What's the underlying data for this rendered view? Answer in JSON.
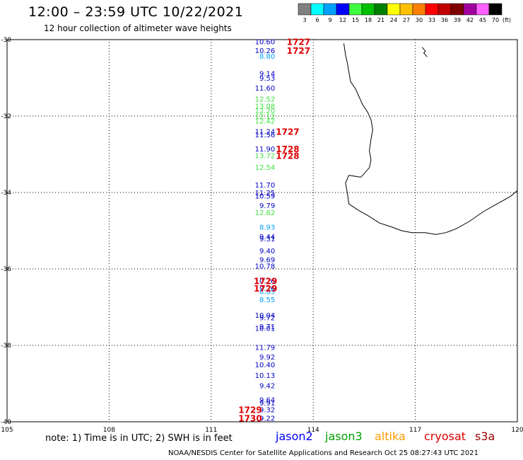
{
  "header": {
    "title": "12:00 – 23:59 UTC 10/22/2021",
    "subtitle": "12 hour collection of altimeter wave heights"
  },
  "legend": {
    "unit": "(ft)",
    "bins": [
      {
        "label": "3",
        "color": "#808080"
      },
      {
        "label": "6",
        "color": "#00ffff"
      },
      {
        "label": "9",
        "color": "#00a0ff"
      },
      {
        "label": "12",
        "color": "#0000ff"
      },
      {
        "label": "15",
        "color": "#40ff40"
      },
      {
        "label": "18",
        "color": "#00c000"
      },
      {
        "label": "21",
        "color": "#008000"
      },
      {
        "label": "24",
        "color": "#ffff00"
      },
      {
        "label": "27",
        "color": "#ffc000"
      },
      {
        "label": "30",
        "color": "#ff8000"
      },
      {
        "label": "33",
        "color": "#ff0000"
      },
      {
        "label": "36",
        "color": "#c00000"
      },
      {
        "label": "39",
        "color": "#800000"
      },
      {
        "label": "42",
        "color": "#a000a0"
      },
      {
        "label": "45",
        "color": "#ff60ff"
      },
      {
        "label": "70",
        "color": "#000000"
      }
    ]
  },
  "map": {
    "lon_range": [
      105,
      120
    ],
    "lat_range": [
      -40,
      -30
    ],
    "x_ticks": [
      {
        "value": 105,
        "label": "105"
      },
      {
        "value": 108,
        "label": "108"
      },
      {
        "value": 111,
        "label": "111"
      },
      {
        "value": 114,
        "label": "114"
      },
      {
        "value": 117,
        "label": "117"
      },
      {
        "value": 120,
        "label": "120"
      }
    ],
    "y_ticks": [
      {
        "value": -30,
        "label": "-30"
      },
      {
        "value": -32,
        "label": "-32"
      },
      {
        "value": -34,
        "label": "-34"
      },
      {
        "value": -36,
        "label": "-36"
      },
      {
        "value": -38,
        "label": "-38"
      },
      {
        "value": -40,
        "label": "-40"
      }
    ],
    "grid": true,
    "observations": [
      {
        "lon": 112.88,
        "lat": -30.05,
        "label": "10.60",
        "color": "#0000c8"
      },
      {
        "lon": 112.88,
        "lat": -30.28,
        "label": "10.26",
        "color": "#0000c8"
      },
      {
        "lon": 112.88,
        "lat": -30.43,
        "label": "8.80",
        "color": "#00a0ff"
      },
      {
        "lon": 112.88,
        "lat": -30.88,
        "label": "9.14",
        "color": "#0000c8"
      },
      {
        "lon": 112.88,
        "lat": -31.0,
        "label": "9.53",
        "color": "#0000c8"
      },
      {
        "lon": 112.88,
        "lat": -31.26,
        "label": "11.60",
        "color": "#0000c8"
      },
      {
        "lon": 112.88,
        "lat": -31.55,
        "label": "12.52",
        "color": "#40e040"
      },
      {
        "lon": 112.88,
        "lat": -31.73,
        "label": "13.08",
        "color": "#40e040"
      },
      {
        "lon": 112.88,
        "lat": -31.85,
        "label": "12.20",
        "color": "#40e040"
      },
      {
        "lon": 112.88,
        "lat": -32.0,
        "label": "12.12",
        "color": "#40e040"
      },
      {
        "lon": 112.88,
        "lat": -32.12,
        "label": "12.42",
        "color": "#40e040"
      },
      {
        "lon": 112.88,
        "lat": -32.4,
        "label": "11.24",
        "color": "#0000c8"
      },
      {
        "lon": 112.88,
        "lat": -32.48,
        "label": "11.56",
        "color": "#0000c8"
      },
      {
        "lon": 112.88,
        "lat": -32.85,
        "label": "11.90",
        "color": "#0000c8"
      },
      {
        "lon": 112.88,
        "lat": -33.03,
        "label": "13.72",
        "color": "#40e040"
      },
      {
        "lon": 112.88,
        "lat": -33.33,
        "label": "12.54",
        "color": "#40e040"
      },
      {
        "lon": 112.88,
        "lat": -33.8,
        "label": "11.70",
        "color": "#0000c8"
      },
      {
        "lon": 112.88,
        "lat": -34.0,
        "label": "11.25",
        "color": "#0000c8"
      },
      {
        "lon": 112.88,
        "lat": -34.08,
        "label": "10.59",
        "color": "#0000c8"
      },
      {
        "lon": 112.88,
        "lat": -34.33,
        "label": "9.79",
        "color": "#0000c8"
      },
      {
        "lon": 112.88,
        "lat": -34.52,
        "label": "12.62",
        "color": "#40e040"
      },
      {
        "lon": 112.88,
        "lat": -34.9,
        "label": "8.93",
        "color": "#00a0ff"
      },
      {
        "lon": 112.88,
        "lat": -35.15,
        "label": "9.44",
        "color": "#0000c8"
      },
      {
        "lon": 112.88,
        "lat": -35.2,
        "label": "9.31",
        "color": "#0000c8"
      },
      {
        "lon": 112.88,
        "lat": -35.52,
        "label": "9.40",
        "color": "#0000c8"
      },
      {
        "lon": 112.88,
        "lat": -35.75,
        "label": "9.69",
        "color": "#0000c8"
      },
      {
        "lon": 112.88,
        "lat": -35.92,
        "label": "10.78",
        "color": "#0000c8"
      },
      {
        "lon": 112.88,
        "lat": -36.31,
        "label": "10.76",
        "color": "#0000c8"
      },
      {
        "lon": 112.88,
        "lat": -36.5,
        "label": "9.26",
        "color": "#0000c8"
      },
      {
        "lon": 112.88,
        "lat": -36.58,
        "label": "8.85",
        "color": "#00a0ff"
      },
      {
        "lon": 112.88,
        "lat": -36.8,
        "label": "8.55",
        "color": "#00a0ff"
      },
      {
        "lon": 112.88,
        "lat": -37.2,
        "label": "10.04",
        "color": "#0000c8"
      },
      {
        "lon": 112.88,
        "lat": -37.27,
        "label": "9.72",
        "color": "#0000c8"
      },
      {
        "lon": 112.88,
        "lat": -37.5,
        "label": "9.71",
        "color": "#0000c8"
      },
      {
        "lon": 112.88,
        "lat": -37.55,
        "label": "10.01",
        "color": "#0000c8"
      },
      {
        "lon": 112.88,
        "lat": -38.05,
        "label": "11.79",
        "color": "#0000c8"
      },
      {
        "lon": 112.88,
        "lat": -38.3,
        "label": "9.92",
        "color": "#0000c8"
      },
      {
        "lon": 112.88,
        "lat": -38.5,
        "label": "10.40",
        "color": "#0000c8"
      },
      {
        "lon": 112.88,
        "lat": -38.78,
        "label": "10.13",
        "color": "#0000c8"
      },
      {
        "lon": 112.88,
        "lat": -39.05,
        "label": "9.42",
        "color": "#0000c8"
      },
      {
        "lon": 112.88,
        "lat": -39.42,
        "label": "9.64",
        "color": "#0000c8"
      },
      {
        "lon": 112.88,
        "lat": -39.5,
        "label": "9.91",
        "color": "#0000c8"
      },
      {
        "lon": 112.88,
        "lat": -39.68,
        "label": "9.32",
        "color": "#0000c8"
      },
      {
        "lon": 112.88,
        "lat": -39.9,
        "label": "9.22",
        "color": "#0000c8"
      }
    ],
    "time_labels": [
      {
        "lon": 113.22,
        "lat": -30.05,
        "label": "1727"
      },
      {
        "lon": 113.22,
        "lat": -30.28,
        "label": "1727"
      },
      {
        "lon": 112.9,
        "lat": -32.4,
        "label": "1727"
      },
      {
        "lon": 112.9,
        "lat": -32.85,
        "label": "1728"
      },
      {
        "lon": 112.9,
        "lat": -33.03,
        "label": "1728"
      },
      {
        "lon": 112.25,
        "lat": -36.31,
        "label": "1729"
      },
      {
        "lon": 112.25,
        "lat": -36.5,
        "label": "1729"
      },
      {
        "lon": 111.8,
        "lat": -39.68,
        "label": "1729"
      },
      {
        "lon": 111.8,
        "lat": -39.9,
        "label": "1730"
      }
    ],
    "coastline": [
      [
        114.9,
        -30.1
      ],
      [
        114.95,
        -30.4
      ],
      [
        115.0,
        -30.6
      ],
      [
        115.05,
        -30.85
      ],
      [
        115.1,
        -31.1
      ],
      [
        115.25,
        -31.3
      ],
      [
        115.35,
        -31.5
      ],
      [
        115.45,
        -31.7
      ],
      [
        115.6,
        -31.9
      ],
      [
        115.7,
        -32.1
      ],
      [
        115.75,
        -32.35
      ],
      [
        115.7,
        -32.6
      ],
      [
        115.65,
        -32.9
      ],
      [
        115.7,
        -33.15
      ],
      [
        115.65,
        -33.35
      ],
      [
        115.4,
        -33.6
      ],
      [
        115.05,
        -33.55
      ],
      [
        114.95,
        -33.75
      ],
      [
        115.0,
        -34.0
      ],
      [
        115.05,
        -34.3
      ],
      [
        115.3,
        -34.45
      ],
      [
        115.6,
        -34.6
      ],
      [
        115.95,
        -34.8
      ],
      [
        116.3,
        -34.9
      ],
      [
        116.6,
        -35.0
      ],
      [
        116.9,
        -35.05
      ],
      [
        117.3,
        -35.05
      ],
      [
        117.6,
        -35.1
      ],
      [
        117.9,
        -35.05
      ],
      [
        118.2,
        -34.95
      ],
      [
        118.6,
        -34.75
      ],
      [
        119.0,
        -34.5
      ],
      [
        119.4,
        -34.3
      ],
      [
        119.8,
        -34.1
      ],
      [
        120.0,
        -33.95
      ]
    ],
    "coastline_north": [
      [
        117.2,
        -30.2
      ],
      [
        117.3,
        -30.3
      ],
      [
        117.25,
        -30.35
      ],
      [
        117.35,
        -30.45
      ]
    ]
  },
  "footer": {
    "note": "note: 1) Time is in UTC; 2) SWH is in feet",
    "satellites": [
      {
        "name": "jason2",
        "color": "#0000ff"
      },
      {
        "name": "jason3",
        "color": "#00a000"
      },
      {
        "name": "altika",
        "color": "#ff9900"
      },
      {
        "name": "cryosat",
        "color": "#e00000"
      },
      {
        "name": "s3a",
        "color": "#a00000"
      }
    ],
    "credit": "NOAA/NESDIS Center for Satellite Applications and Research     Oct 25 08:27:43 UTC 2021"
  }
}
